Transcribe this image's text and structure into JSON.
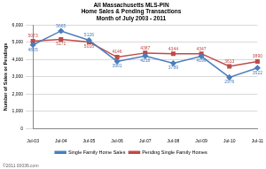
{
  "chart_data": {
    "type": "line",
    "title": [
      "All Massachusetts MLS-PIN",
      "Home Sales & Pending Transactions",
      "Month of July 2003 - 2011"
    ],
    "y_label": "Number of Sales or Pendings",
    "categories": [
      "Jul-03",
      "Jul-04",
      "Jul-05",
      "Jul-06",
      "Jul-07",
      "Jul-08",
      "Jul-09",
      "Jul-10",
      "Jul-11"
    ],
    "series": [
      {
        "name": "Single Family Home Sales",
        "color": "#4a7ebb",
        "marker": "diamond",
        "values": [
          4855,
          5665,
          5126,
          3901,
          4218,
          3789,
          4199,
          2976,
          3522
        ]
      },
      {
        "name": "Pending Single Family Homes",
        "color": "#be4b48",
        "marker": "square",
        "values": [
          5073,
          5171,
          5016,
          4146,
          4387,
          4344,
          4347,
          3613,
          3890
        ]
      }
    ],
    "ylim": [
      0,
      6000
    ],
    "yticks": [
      0,
      1000,
      2000,
      3000,
      4000,
      5000,
      6000
    ],
    "grid": true,
    "legend": "bottom",
    "data_labels": true,
    "annotations": [
      "©2011 00036.com"
    ]
  }
}
